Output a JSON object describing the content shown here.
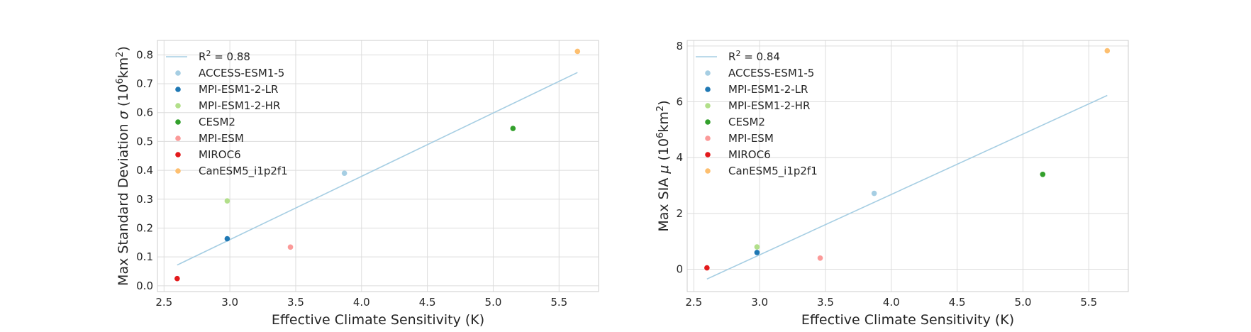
{
  "chart_data": [
    {
      "type": "scatter",
      "xlabel": "Effective Climate Sensitivity (K)",
      "ylabel": "Max Standard Deviation σ (10⁶km²)",
      "ylabel_parts": {
        "main": "Max Standard Deviation ",
        "sym": "σ",
        "unit_open": " (10",
        "sup1": "6",
        "unit_mid": "km",
        "sup2": "2",
        "unit_close": ")"
      },
      "xlim": [
        2.45,
        5.8
      ],
      "ylim": [
        -0.02,
        0.85
      ],
      "xticks": [
        2.5,
        3.0,
        3.5,
        4.0,
        4.5,
        5.0,
        5.5
      ],
      "xtick_labels": [
        "2.5",
        "3.0",
        "3.5",
        "4.0",
        "4.5",
        "5.0",
        "5.5"
      ],
      "yticks": [
        0.0,
        0.1,
        0.2,
        0.3,
        0.4,
        0.5,
        0.6,
        0.7,
        0.8
      ],
      "ytick_labels": [
        "0.0",
        "0.1",
        "0.2",
        "0.3",
        "0.4",
        "0.5",
        "0.6",
        "0.7",
        "0.8"
      ],
      "grid": true,
      "legend_position": "top-left",
      "fit": {
        "label": "R² = 0.88",
        "label_parts": {
          "base": "R",
          "sup": "2",
          "rest": " = 0.88"
        },
        "color": "#a6cee3",
        "x": [
          2.6,
          5.64
        ],
        "y": [
          0.072,
          0.739
        ]
      },
      "series": [
        {
          "name": "ACCESS-ESM1-5",
          "color": "#a6cee3",
          "x": [
            3.87
          ],
          "y": [
            0.39
          ]
        },
        {
          "name": "MPI-ESM1-2-LR",
          "color": "#1f78b4",
          "x": [
            2.98
          ],
          "y": [
            0.163
          ]
        },
        {
          "name": "MPI-ESM1-2-HR",
          "color": "#b2df8a",
          "x": [
            2.98
          ],
          "y": [
            0.294
          ]
        },
        {
          "name": "CESM2",
          "color": "#33a02c",
          "x": [
            5.15
          ],
          "y": [
            0.545
          ]
        },
        {
          "name": "MPI-ESM",
          "color": "#fb9a99",
          "x": [
            3.46
          ],
          "y": [
            0.134
          ]
        },
        {
          "name": "MIROC6",
          "color": "#e31a1c",
          "x": [
            2.6
          ],
          "y": [
            0.025
          ]
        },
        {
          "name": "CanESM5_i1p2f1",
          "color": "#fdbf6f",
          "x": [
            5.64
          ],
          "y": [
            0.812
          ]
        }
      ]
    },
    {
      "type": "scatter",
      "xlabel": "Effective Climate Sensitivity (K)",
      "ylabel": "Max SIA μ (10⁶km²)",
      "ylabel_parts": {
        "main": "Max SIA ",
        "sym": "μ",
        "unit_open": " (10",
        "sup1": "6",
        "unit_mid": "km",
        "sup2": "2",
        "unit_close": ")"
      },
      "xlim": [
        2.45,
        5.8
      ],
      "ylim": [
        -0.8,
        8.2
      ],
      "xticks": [
        2.5,
        3.0,
        3.5,
        4.0,
        4.5,
        5.0,
        5.5
      ],
      "xtick_labels": [
        "2.5",
        "3.0",
        "3.5",
        "4.0",
        "4.5",
        "5.0",
        "5.5"
      ],
      "yticks": [
        0,
        2,
        4,
        6,
        8
      ],
      "ytick_labels": [
        "0",
        "2",
        "4",
        "6",
        "8"
      ],
      "grid": true,
      "legend_position": "top-left",
      "fit": {
        "label": "R² = 0.84",
        "label_parts": {
          "base": "R",
          "sup": "2",
          "rest": " = 0.84"
        },
        "color": "#a6cee3",
        "x": [
          2.6,
          5.64
        ],
        "y": [
          -0.35,
          6.23
        ]
      },
      "series": [
        {
          "name": "ACCESS-ESM1-5",
          "color": "#a6cee3",
          "x": [
            3.87
          ],
          "y": [
            2.72
          ]
        },
        {
          "name": "MPI-ESM1-2-LR",
          "color": "#1f78b4",
          "x": [
            2.98
          ],
          "y": [
            0.6
          ]
        },
        {
          "name": "MPI-ESM1-2-HR",
          "color": "#b2df8a",
          "x": [
            2.98
          ],
          "y": [
            0.8
          ]
        },
        {
          "name": "CESM2",
          "color": "#33a02c",
          "x": [
            5.15
          ],
          "y": [
            3.4
          ]
        },
        {
          "name": "MPI-ESM",
          "color": "#fb9a99",
          "x": [
            3.46
          ],
          "y": [
            0.4
          ]
        },
        {
          "name": "MIROC6",
          "color": "#e31a1c",
          "x": [
            2.6
          ],
          "y": [
            0.05
          ]
        },
        {
          "name": "CanESM5_i1p2f1",
          "color": "#fdbf6f",
          "x": [
            5.64
          ],
          "y": [
            7.83
          ]
        }
      ]
    }
  ]
}
